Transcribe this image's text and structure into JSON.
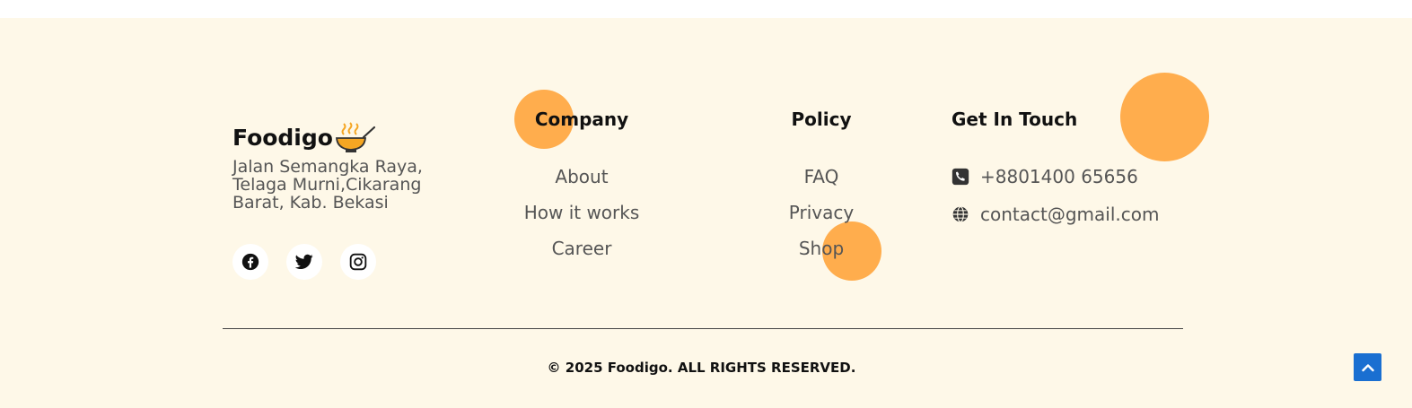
{
  "brand": {
    "name": "Foodigo",
    "logo_icon": "bowl-steam-icon"
  },
  "address": "Jalan Semangka Raya, Telaga Murni,Cikarang Barat, Kab. Bekasi",
  "socials": [
    {
      "name": "facebook-icon"
    },
    {
      "name": "twitter-icon"
    },
    {
      "name": "instagram-icon"
    }
  ],
  "company": {
    "title": "Company",
    "links": [
      "About",
      "How it works",
      "Career"
    ]
  },
  "policy": {
    "title": "Policy",
    "links": [
      "FAQ",
      "Privacy",
      "Shop"
    ]
  },
  "contact": {
    "title": "Get In Touch",
    "phone": "+8801400 65656",
    "email": "contact@gmail.com",
    "phone_icon": "phone-icon",
    "email_icon": "globe-icon"
  },
  "copyright": "© 2025 Foodigo. ALL RIGHTS RESERVED.",
  "colors": {
    "background": "#fef8e8",
    "accent": "#ffad4d",
    "scroll_button": "#1a6fd1"
  }
}
